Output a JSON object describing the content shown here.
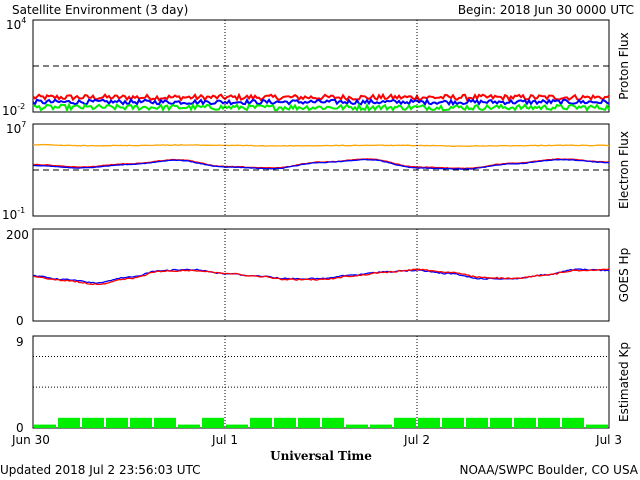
{
  "header": {
    "title": "Satellite Environment (3 day)",
    "begin": "Begin:  2018 Jun 30 0000 UTC"
  },
  "footer": {
    "updated": "Updated 2018 Jul  2 23:56:03 UTC",
    "credit": "NOAA/SWPC Boulder, CO USA"
  },
  "colors": {
    "red": "#ff0000",
    "blue": "#0000ff",
    "green": "#00ee00",
    "orange": "#ffa500",
    "axis": "#000000"
  },
  "chart_data": [
    {
      "type": "line",
      "panel": "proton",
      "ylabel": "Proton Flux",
      "y_scale": "log",
      "ylim": [
        0.01,
        10000
      ],
      "y_tick_labels": {
        "top": "10",
        "top_exp": "4",
        "bottom": "10",
        "bottom_exp": "-2"
      },
      "threshold": 10,
      "series": [
        {
          "color": "#ff0000",
          "level": 0.09,
          "noise": 0.35
        },
        {
          "color": "#0000ff",
          "level": 0.045,
          "noise": 0.3
        },
        {
          "color": "#00ee00",
          "level": 0.02,
          "noise": 0.35
        }
      ]
    },
    {
      "type": "line",
      "panel": "electron",
      "ylabel": "Electron Flux",
      "y_scale": "log",
      "ylim": [
        0.1,
        10000000
      ],
      "y_tick_labels": {
        "top": "10",
        "top_exp": "7",
        "bottom": "10",
        "bottom_exp": "-1"
      },
      "threshold": 1000,
      "x": [
        0,
        6,
        12,
        18,
        24,
        30,
        36,
        42,
        48,
        54,
        60,
        66,
        72
      ],
      "series": [
        {
          "color": "#ffa500",
          "values": [
            160000,
            130000,
            135000,
            150000,
            140000,
            125000,
            130000,
            140000,
            135000,
            120000,
            130000,
            140000,
            135000
          ]
        },
        {
          "color": "#ff0000",
          "values": [
            3000,
            1800,
            3500,
            8000,
            2000,
            1500,
            5000,
            9000,
            1800,
            1400,
            4000,
            9000,
            5000
          ]
        },
        {
          "color": "#0000ff",
          "values": [
            2500,
            1500,
            3000,
            7000,
            1800,
            1300,
            4500,
            8000,
            1500,
            1200,
            3500,
            8000,
            4500
          ]
        }
      ]
    },
    {
      "type": "line",
      "panel": "goes-hp",
      "ylabel": "GOES Hp",
      "ylim": [
        0,
        200
      ],
      "y_ticks": [
        "200",
        "0"
      ],
      "x": [
        0,
        4,
        8,
        12,
        16,
        20,
        24,
        28,
        32,
        36,
        40,
        44,
        48,
        52,
        56,
        60,
        64,
        68,
        72
      ],
      "series": [
        {
          "color": "#0000ff",
          "values": [
            98,
            90,
            83,
            95,
            110,
            112,
            103,
            98,
            92,
            92,
            100,
            107,
            110,
            103,
            92,
            92,
            100,
            112,
            110
          ]
        },
        {
          "color": "#ff0000",
          "values": [
            96,
            88,
            80,
            92,
            108,
            110,
            104,
            97,
            90,
            90,
            98,
            106,
            112,
            106,
            95,
            92,
            100,
            110,
            112
          ]
        }
      ]
    },
    {
      "type": "bar",
      "panel": "kp",
      "ylabel": "Estimated Kp",
      "ylim": [
        0,
        9
      ],
      "y_ticks": [
        "9",
        "0"
      ],
      "bar_color": "#00ee00",
      "values": [
        0.33,
        1,
        1,
        1,
        1,
        1,
        0.33,
        1,
        0.33,
        1,
        1,
        1,
        1,
        0.33,
        0.33,
        1,
        1,
        1,
        1,
        1,
        1,
        1,
        1,
        0.33
      ]
    }
  ],
  "x_axis": {
    "label": "Universal Time",
    "ticks": [
      "Jun 30",
      "Jul 1",
      "Jul 2",
      "Jul 3"
    ]
  }
}
